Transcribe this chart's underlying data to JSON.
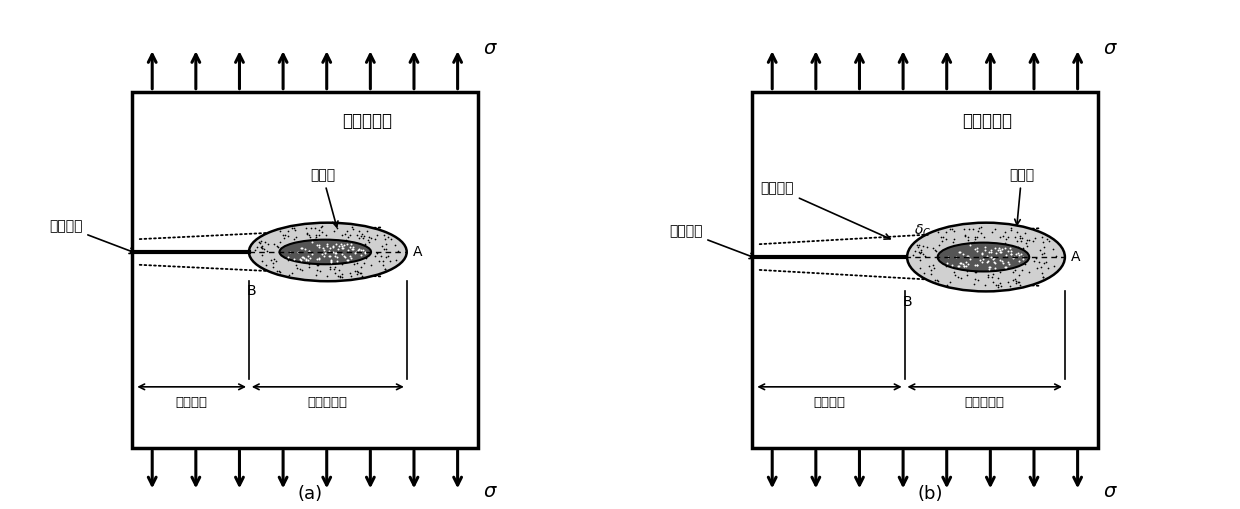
{
  "fig_width": 12.4,
  "fig_height": 5.09,
  "bg_color": "#ffffff",
  "panel_a_title": "峰值载荷前",
  "panel_b_title": "峰值载荷后",
  "caption_a": "(a)",
  "caption_b": "(b)",
  "sigma": "σ",
  "label_process_zone": "过程区",
  "label_prefab_crack": "预制裂缝",
  "label_true_crack": "真实裂缝",
  "label_process_length": "过程区长度",
  "label_expand_crack": "扩展裂缝",
  "label_delta": "δC",
  "label_A": "A",
  "label_B": "B"
}
